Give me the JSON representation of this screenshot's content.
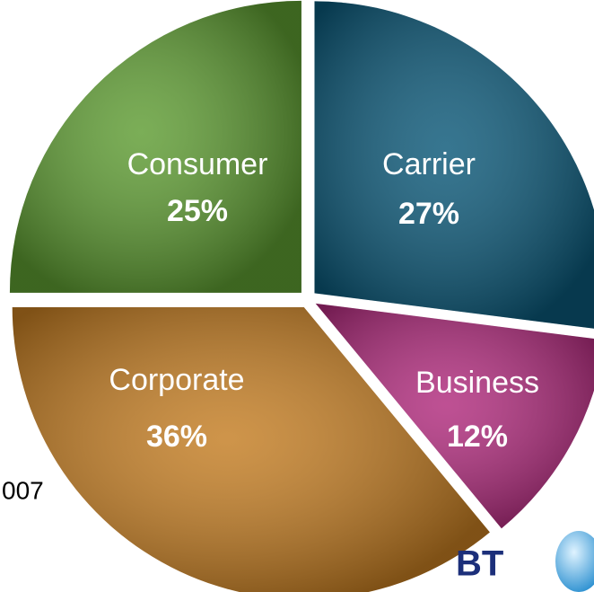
{
  "chart_data": {
    "type": "pie",
    "categories": [
      "Carrier",
      "Business",
      "Corporate",
      "Consumer"
    ],
    "values": [
      27,
      12,
      36,
      25
    ],
    "value_labels": [
      "27%",
      "12%",
      "36%",
      "25%"
    ],
    "colors": [
      "#0b5878",
      "#b02a7c",
      "#c47d22",
      "#5e9c32"
    ],
    "footnote": "007",
    "logo": "BT"
  }
}
